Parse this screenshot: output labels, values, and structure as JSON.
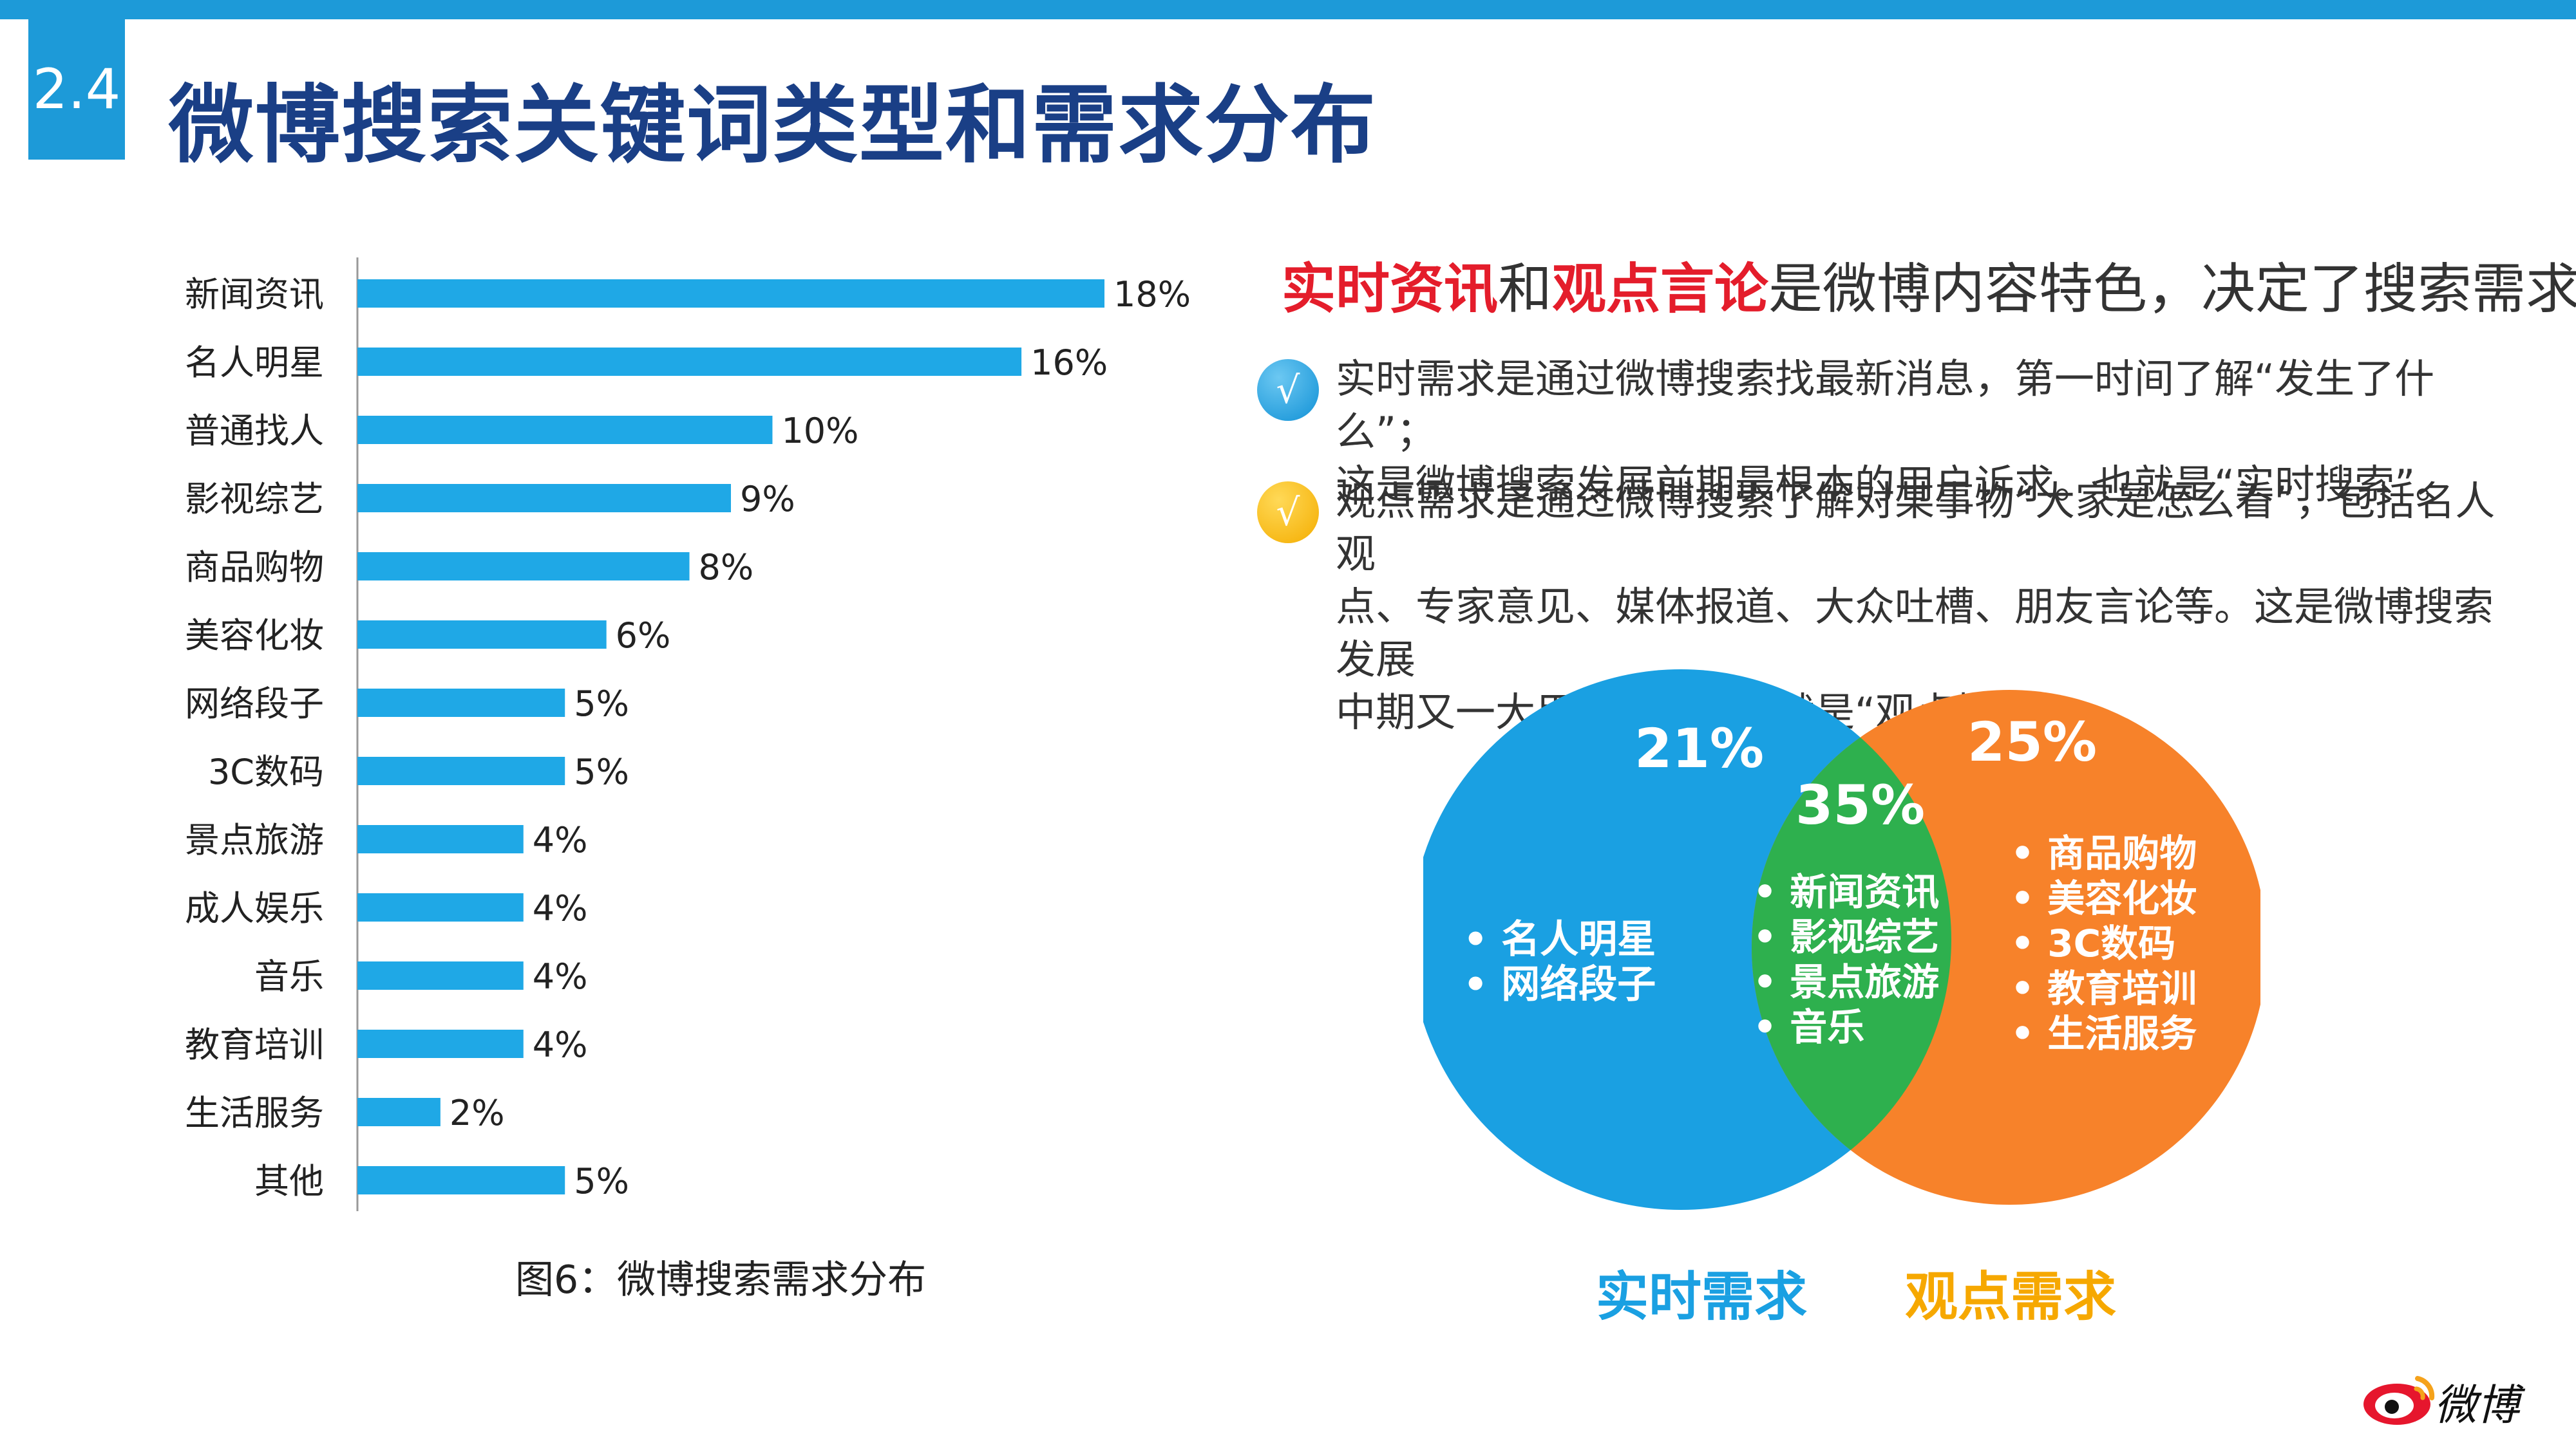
{
  "section_number": "2.4",
  "title": "微博搜索关键词类型和需求分布",
  "chart_data": {
    "type": "bar",
    "orientation": "horizontal",
    "categories": [
      "新闻资讯",
      "名人明星",
      "普通找人",
      "影视综艺",
      "商品购物",
      "美容化妆",
      "网络段子",
      "3C数码",
      "景点旅游",
      "成人娱乐",
      "音乐",
      "教育培训",
      "生活服务",
      "其他"
    ],
    "values": [
      18,
      16,
      10,
      9,
      8,
      6,
      5,
      5,
      4,
      4,
      4,
      4,
      2,
      5
    ],
    "value_labels": [
      "18%",
      "16%",
      "10%",
      "9%",
      "8%",
      "6%",
      "5%",
      "5%",
      "4%",
      "4%",
      "4%",
      "4%",
      "2%",
      "5%"
    ],
    "unit": "%",
    "xlim": [
      0,
      20
    ],
    "bar_color": "#1fa8e6",
    "title": "",
    "xlabel": "",
    "ylabel": ""
  },
  "caption": "图6：微博搜索需求分布",
  "headline": {
    "part1": "实时资讯",
    "part2": "和",
    "part3": "观点言论",
    "part4": "是微博内容特色，决定了搜索需求特点"
  },
  "points": [
    {
      "check": "√",
      "lines": [
        "实时需求是通过微博搜索找最新消息，第一时间了解“发生了什么”；",
        "这是微博搜索发展前期最根本的用户诉求。也就是“实时搜索”。"
      ]
    },
    {
      "check": "√",
      "lines": [
        "观点需求是通过微博搜索了解对某事物“大家是怎么看”，包括名人观",
        "点、专家意见、媒体报道、大众吐槽、朋友言论等。这是微博搜索发展",
        "中期又一大用户诉求。也就是“观点搜索”。"
      ]
    }
  ],
  "venn": {
    "left": {
      "percent": "21%",
      "items": [
        "• 名人明星",
        "• 网络段子"
      ],
      "color": "#1aa0e2"
    },
    "center": {
      "percent": "35%",
      "items": [
        "• 新闻资讯",
        "• 影视综艺",
        "• 景点旅游",
        "• 音乐"
      ],
      "color": "#2eb04e"
    },
    "right": {
      "percent": "25%",
      "items": [
        "• 商品购物",
        "• 美容化妆",
        "• 3C数码",
        "• 教育培训",
        "• 生活服务"
      ],
      "color": "#f7822a"
    },
    "label_left": "实时需求",
    "label_right": "观点需求",
    "label_left_color": "#1aa0e2",
    "label_right_color": "#f6a800"
  },
  "logo_text": "微博"
}
